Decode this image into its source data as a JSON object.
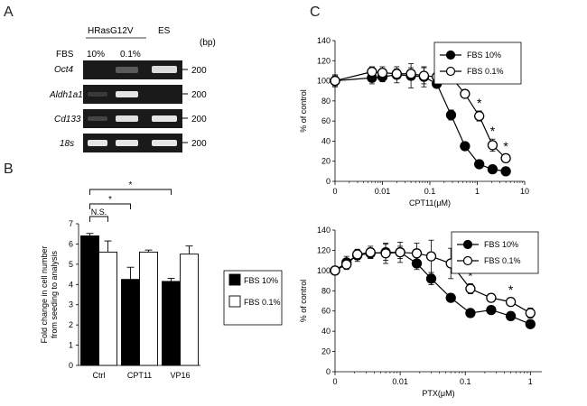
{
  "panels": {
    "a": "A",
    "b": "B",
    "c": "C"
  },
  "gel": {
    "header_group": "HRasG12V",
    "header_es": "ES",
    "fbs_label": "FBS",
    "conditions": [
      "10%",
      "0.1%"
    ],
    "bp_unit": "(bp)",
    "genes": [
      {
        "name": "Oct4",
        "bp": "200"
      },
      {
        "name": "Aldh1a1",
        "bp": "200"
      },
      {
        "name": "Cd133",
        "bp": "200"
      },
      {
        "name": "18s",
        "bp": "200"
      }
    ]
  },
  "chart_data": [
    {
      "id": "bar",
      "type": "bar",
      "ylabel": "Fold change in cell number from seeding to analysis",
      "ylabel_lines": [
        "Fold change in cell number",
        "from seeding to analysis"
      ],
      "categories": [
        "Ctrl",
        "CPT11",
        "VP16"
      ],
      "ylim": [
        0,
        7
      ],
      "yticks": [
        0,
        1,
        2,
        3,
        4,
        5,
        6,
        7
      ],
      "series": [
        {
          "name": "FBS 10%",
          "color": "#000000",
          "values": [
            6.4,
            4.25,
            4.15
          ],
          "errors": [
            0.12,
            0.6,
            0.15
          ]
        },
        {
          "name": "FBS 0.1%",
          "color": "#ffffff",
          "values": [
            5.6,
            5.6,
            5.5
          ],
          "errors": [
            0.55,
            0.1,
            0.4
          ]
        }
      ],
      "annotations": {
        "ns": "N.S.",
        "star": "*"
      },
      "legend": "right"
    },
    {
      "id": "cpt",
      "type": "line",
      "xlabel": "CPT11(μM)",
      "ylabel": "% of control",
      "xscale": "log",
      "xlim": [
        0.001,
        10
      ],
      "xticks": [
        "0",
        "0.01",
        "0.1",
        "1",
        "10"
      ],
      "ylim": [
        0,
        140
      ],
      "yticks": [
        0,
        20,
        40,
        60,
        80,
        100,
        120,
        140
      ],
      "x": [
        0.001,
        0.006,
        0.01,
        0.02,
        0.04,
        0.075,
        0.14,
        0.28,
        0.55,
        1.1,
        2.1,
        4.0
      ],
      "series": [
        {
          "name": "FBS 10%",
          "fill": "#000000",
          "values": [
            100,
            103,
            104,
            106,
            105,
            104,
            97,
            66,
            35,
            17,
            12,
            10
          ],
          "errors": [
            5,
            6,
            5,
            8,
            12,
            10,
            4,
            5,
            3,
            2,
            2,
            1
          ]
        },
        {
          "name": "FBS 0.1%",
          "fill": "#ffffff",
          "values": [
            100,
            109,
            108,
            107,
            107,
            105,
            104,
            104,
            87,
            65,
            36,
            23
          ],
          "errors": [
            6,
            5,
            6,
            5,
            6,
            8,
            5,
            4,
            4,
            5,
            6,
            4
          ]
        }
      ],
      "star_x": [
        0.28,
        0.55,
        1.1,
        2.1,
        4.0
      ],
      "star": "*",
      "legend": "top-right"
    },
    {
      "id": "ptx",
      "type": "line",
      "xlabel": "PTX(μM)",
      "ylabel": "% of control",
      "xscale": "log",
      "xlim": [
        0.001,
        1.5
      ],
      "xticks": [
        "0",
        "0.01",
        "0.1",
        "1"
      ],
      "ylim": [
        0,
        140
      ],
      "yticks": [
        0,
        20,
        40,
        60,
        80,
        100,
        120,
        140
      ],
      "x": [
        0.001,
        0.0015,
        0.0022,
        0.0035,
        0.006,
        0.01,
        0.018,
        0.03,
        0.06,
        0.12,
        0.25,
        0.5,
        1.0
      ],
      "series": [
        {
          "name": "FBS 10%",
          "fill": "#000000",
          "values": [
            100,
            108,
            115,
            117,
            118,
            118,
            107,
            92,
            73,
            58,
            61,
            55,
            47
          ],
          "errors": [
            4,
            6,
            6,
            5,
            8,
            10,
            6,
            6,
            4,
            4,
            3,
            3,
            3
          ]
        },
        {
          "name": "FBS 0.1%",
          "fill": "#ffffff",
          "values": [
            100,
            106,
            116,
            118,
            117,
            118,
            117,
            114,
            107,
            82,
            73,
            69,
            58
          ],
          "errors": [
            4,
            5,
            5,
            6,
            10,
            6,
            10,
            16,
            15,
            5,
            4,
            4,
            5
          ]
        }
      ],
      "star_x": [
        0.12,
        0.5
      ],
      "star": "*",
      "legend": "top-right"
    }
  ]
}
